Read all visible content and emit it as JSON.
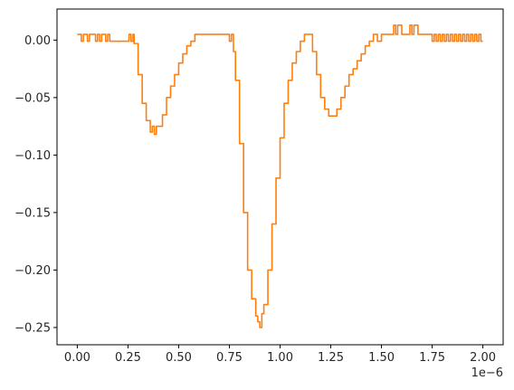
{
  "chart_data": {
    "type": "line",
    "title": "",
    "xlabel": "",
    "ylabel": "",
    "x_offset_label": "1e−6",
    "x_scale_factor": 1e-06,
    "xlim": [
      -1e-07,
      2.1e-06
    ],
    "ylim": [
      -0.265,
      0.027
    ],
    "x_ticks": [
      0.0,
      2.5e-07,
      5e-07,
      7.5e-07,
      1e-06,
      1.25e-06,
      1.5e-06,
      1.75e-06,
      2e-06
    ],
    "x_tick_labels": [
      "0.00",
      "0.25",
      "0.50",
      "0.75",
      "1.00",
      "1.25",
      "1.50",
      "1.75",
      "2.00"
    ],
    "y_ticks": [
      0.0,
      -0.05,
      -0.1,
      -0.15,
      -0.2,
      -0.25
    ],
    "y_tick_labels": [
      "0.00",
      "−0.05",
      "−0.10",
      "−0.15",
      "−0.20",
      "−0.25"
    ],
    "grid": false,
    "legend": "none",
    "series": [
      {
        "color": "#ff7f0e",
        "x": [
          0.0,
          1e-08,
          2e-08,
          3e-08,
          4e-08,
          5e-08,
          6e-08,
          7e-08,
          8e-08,
          9e-08,
          1e-07,
          1.1e-07,
          1.2e-07,
          1.3e-07,
          1.4e-07,
          1.5e-07,
          1.6e-07,
          1.8e-07,
          2e-07,
          2.2e-07,
          2.4e-07,
          2.55e-07,
          2.65e-07,
          2.75e-07,
          2.8e-07,
          3e-07,
          3.2e-07,
          3.4e-07,
          3.6e-07,
          3.7e-07,
          3.8e-07,
          3.9e-07,
          4e-07,
          4.2e-07,
          4.4e-07,
          4.6e-07,
          4.8e-07,
          5e-07,
          5.2e-07,
          5.4e-07,
          5.6e-07,
          5.8e-07,
          6e-07,
          6.2e-07,
          6.5e-07,
          7e-07,
          7.4e-07,
          7.5e-07,
          7.6e-07,
          7.7e-07,
          7.8e-07,
          8e-07,
          8.2e-07,
          8.4e-07,
          8.6e-07,
          8.8e-07,
          8.9e-07,
          9e-07,
          9.1e-07,
          9.2e-07,
          9.4e-07,
          9.6e-07,
          9.8e-07,
          1e-06,
          1.02e-06,
          1.04e-06,
          1.06e-06,
          1.08e-06,
          1.1e-06,
          1.12e-06,
          1.14e-06,
          1.15e-06,
          1.16e-06,
          1.18e-06,
          1.2e-06,
          1.22e-06,
          1.24e-06,
          1.26e-06,
          1.28e-06,
          1.3e-06,
          1.32e-06,
          1.34e-06,
          1.36e-06,
          1.38e-06,
          1.4e-06,
          1.42e-06,
          1.44e-06,
          1.46e-06,
          1.48e-06,
          1.5e-06,
          1.52e-06,
          1.54e-06,
          1.56e-06,
          1.57e-06,
          1.58e-06,
          1.6e-06,
          1.62e-06,
          1.64e-06,
          1.65e-06,
          1.66e-06,
          1.68e-06,
          1.7e-06,
          1.71e-06,
          1.72e-06,
          1.74e-06,
          1.75e-06,
          1.76e-06,
          1.77e-06,
          1.78e-06,
          1.79e-06,
          1.8e-06,
          1.81e-06,
          1.82e-06,
          1.83e-06,
          1.84e-06,
          1.85e-06,
          1.86e-06,
          1.87e-06,
          1.88e-06,
          1.89e-06,
          1.9e-06,
          1.91e-06,
          1.92e-06,
          1.93e-06,
          1.94e-06,
          1.95e-06,
          1.96e-06,
          1.97e-06,
          1.98e-06,
          1.99e-06,
          2e-06
        ],
        "y": [
          0.005,
          0.005,
          -0.001,
          0.005,
          0.005,
          -0.001,
          0.005,
          0.005,
          0.005,
          -0.001,
          0.005,
          -0.001,
          0.005,
          0.005,
          -0.001,
          0.005,
          -0.001,
          -0.001,
          -0.001,
          -0.001,
          -0.001,
          0.005,
          -0.001,
          0.005,
          -0.003,
          -0.03,
          -0.055,
          -0.07,
          -0.08,
          -0.075,
          -0.082,
          -0.075,
          -0.075,
          -0.065,
          -0.05,
          -0.04,
          -0.03,
          -0.02,
          -0.012,
          -0.005,
          -0.001,
          0.005,
          0.005,
          0.005,
          0.005,
          0.005,
          0.005,
          -0.001,
          0.005,
          -0.01,
          -0.035,
          -0.09,
          -0.15,
          -0.2,
          -0.225,
          -0.24,
          -0.245,
          -0.25,
          -0.238,
          -0.23,
          -0.2,
          -0.16,
          -0.12,
          -0.085,
          -0.055,
          -0.035,
          -0.02,
          -0.01,
          -0.001,
          0.005,
          0.005,
          0.005,
          -0.01,
          -0.03,
          -0.05,
          -0.06,
          -0.066,
          -0.066,
          -0.06,
          -0.05,
          -0.04,
          -0.03,
          -0.025,
          -0.018,
          -0.012,
          -0.005,
          -0.001,
          0.005,
          -0.001,
          0.005,
          0.005,
          0.005,
          0.013,
          0.005,
          0.013,
          0.005,
          0.005,
          0.013,
          0.005,
          0.013,
          0.005,
          0.005,
          0.005,
          0.005,
          0.005,
          -0.001,
          0.005,
          -0.001,
          0.005,
          -0.001,
          0.005,
          -0.001,
          0.005,
          -0.001,
          0.005,
          -0.001,
          0.005,
          -0.001,
          0.005,
          -0.001,
          0.005,
          -0.001,
          0.005,
          -0.001,
          0.005,
          -0.001,
          0.005,
          -0.001,
          0.005,
          -0.001,
          -0.001
        ]
      }
    ]
  }
}
